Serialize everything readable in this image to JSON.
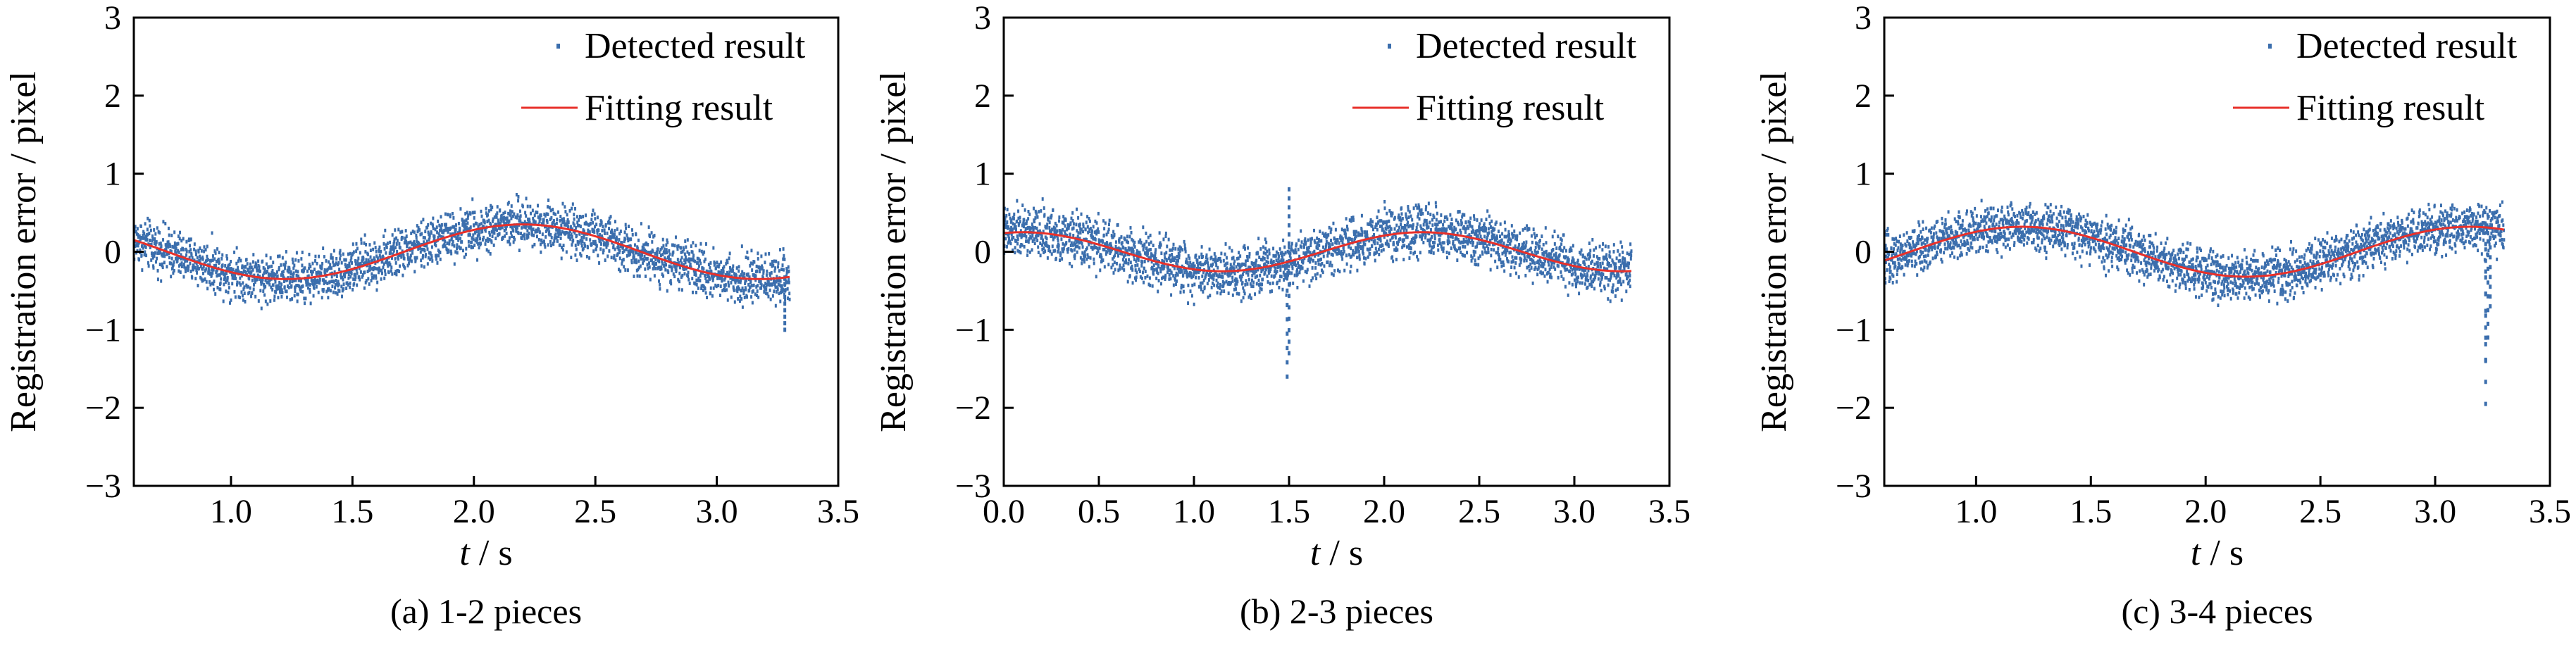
{
  "colors": {
    "detected": "#3b6ead",
    "fitting": "#e8302a",
    "axis": "#000000"
  },
  "chart_data": [
    {
      "type": "scatter",
      "caption": "(a) 1-2 pieces",
      "xlabel_italic": "t",
      "xlabel_rest": " / s",
      "ylabel": "Registration error / pixel",
      "xlim": [
        0.6,
        3.5
      ],
      "ylim": [
        -3,
        3
      ],
      "xticks": [
        1.0,
        1.5,
        2.0,
        2.5,
        3.0,
        3.5
      ],
      "xtick_labels": [
        "1.0",
        "1.5",
        "2.0",
        "2.5",
        "3.0",
        "3.5"
      ],
      "yticks": [
        -3,
        -2,
        -1,
        0,
        1,
        2,
        3
      ],
      "ytick_labels": [
        "−3",
        "−2",
        "−1",
        "0",
        "1",
        "2",
        "3"
      ],
      "legend": [
        "Detected result",
        "Fitting result"
      ],
      "legend_position": "top-right",
      "detected": {
        "t_start": 0.6,
        "t_end": 3.3,
        "noise_amplitude": 0.28,
        "spikes": [
          {
            "t": 3.28,
            "value": -1.0
          }
        ]
      },
      "fit": {
        "amplitude": 0.35,
        "period": 1.95,
        "peak_t": 2.2,
        "x_range": [
          0.6,
          3.3
        ]
      }
    },
    {
      "type": "scatter",
      "caption": "(b) 2-3 pieces",
      "xlabel_italic": "t",
      "xlabel_rest": " / s",
      "ylabel": "Registration error / pixel",
      "xlim": [
        0.0,
        3.5
      ],
      "ylim": [
        -3,
        3
      ],
      "xticks": [
        0.0,
        0.5,
        1.0,
        1.5,
        2.0,
        2.5,
        3.0,
        3.5
      ],
      "xtick_labels": [
        "0.0",
        "0.5",
        "1.0",
        "1.5",
        "2.0",
        "2.5",
        "3.0",
        "3.5"
      ],
      "yticks": [
        -3,
        -2,
        -1,
        0,
        1,
        2,
        3
      ],
      "ytick_labels": [
        "−3",
        "−2",
        "−1",
        "0",
        "1",
        "2",
        "3"
      ],
      "legend": [
        "Detected result",
        "Fitting result"
      ],
      "legend_position": "top-right",
      "detected": {
        "t_start": 0.0,
        "t_end": 3.3,
        "noise_amplitude": 0.3,
        "spikes": [
          {
            "t": 1.49,
            "value": -1.6
          },
          {
            "t": 1.5,
            "value": -1.3
          },
          {
            "t": 1.5,
            "value": 0.8
          }
        ]
      },
      "fit": {
        "amplitude": 0.25,
        "period": 2.1,
        "peak_t": 2.2,
        "x_range": [
          0.0,
          3.3
        ]
      }
    },
    {
      "type": "scatter",
      "caption": "(c) 3-4 pieces",
      "xlabel_italic": "t",
      "xlabel_rest": " / s",
      "ylabel": "Registration error / pixel",
      "xlim": [
        0.6,
        3.5
      ],
      "ylim": [
        -3,
        3
      ],
      "xticks": [
        1.0,
        1.5,
        2.0,
        2.5,
        3.0,
        3.5
      ],
      "xtick_labels": [
        "1.0",
        "1.5",
        "2.0",
        "2.5",
        "3.0",
        "3.5"
      ],
      "yticks": [
        -3,
        -2,
        -1,
        0,
        1,
        2,
        3
      ],
      "ytick_labels": [
        "−3",
        "−2",
        "−1",
        "0",
        "1",
        "2",
        "3"
      ],
      "legend": [
        "Detected result",
        "Fitting result"
      ],
      "legend_position": "top-right",
      "detected": {
        "t_start": 0.6,
        "t_end": 3.3,
        "noise_amplitude": 0.28,
        "spikes": [
          {
            "t": 3.22,
            "value": -1.95
          },
          {
            "t": 3.22,
            "value": -1.4
          },
          {
            "t": 3.23,
            "value": -1.1
          },
          {
            "t": 3.24,
            "value": -0.7
          }
        ]
      },
      "fit": {
        "amplitude": 0.32,
        "period": 1.95,
        "peak_t": 1.2,
        "x_range": [
          0.6,
          3.3
        ]
      }
    }
  ]
}
